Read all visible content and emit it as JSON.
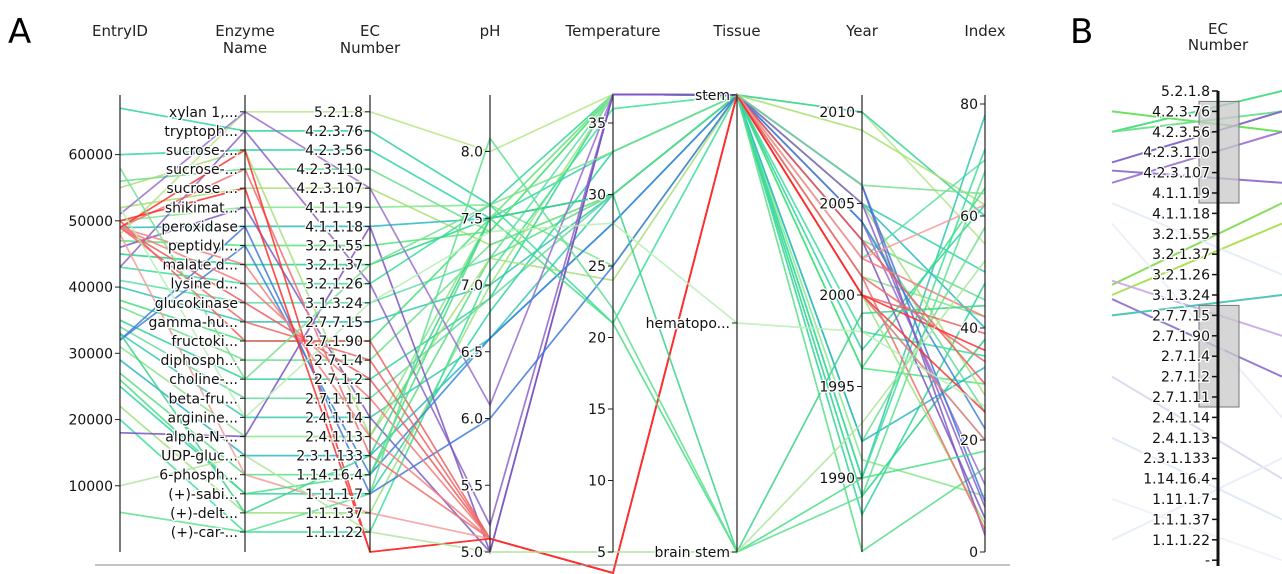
{
  "panel_labels": {
    "a": "A",
    "b": "B"
  },
  "chart_data": [
    {
      "type": "parallel-coordinates",
      "axes": [
        {
          "key": "entry_id",
          "title": [
            "EntryID"
          ],
          "scale": "linear",
          "domain": [
            0,
            69000
          ],
          "ticks": [
            {
              "v": 10000,
              "label": "10000"
            },
            {
              "v": 20000,
              "label": "20000"
            },
            {
              "v": 30000,
              "label": "30000"
            },
            {
              "v": 40000,
              "label": "40000"
            },
            {
              "v": 50000,
              "label": "50000"
            },
            {
              "v": 60000,
              "label": "60000"
            }
          ]
        },
        {
          "key": "enzyme_name",
          "title": [
            "Enzyme",
            "Name"
          ],
          "scale": "category",
          "ticks": [
            {
              "v": 0,
              "label": "(+)-car-..."
            },
            {
              "v": 1,
              "label": "(+)-delt..."
            },
            {
              "v": 2,
              "label": "(+)-sabi..."
            },
            {
              "v": 3,
              "label": "6-phosph..."
            },
            {
              "v": 4,
              "label": "UDP-gluc..."
            },
            {
              "v": 5,
              "label": "alpha-N-..."
            },
            {
              "v": 6,
              "label": "arginine..."
            },
            {
              "v": 7,
              "label": "beta-fru..."
            },
            {
              "v": 8,
              "label": "choline-..."
            },
            {
              "v": 9,
              "label": "diphosph..."
            },
            {
              "v": 10,
              "label": "fructoki..."
            },
            {
              "v": 11,
              "label": "gamma-hu..."
            },
            {
              "v": 12,
              "label": "glucokinase"
            },
            {
              "v": 13,
              "label": "lysine d..."
            },
            {
              "v": 14,
              "label": "malate d..."
            },
            {
              "v": 15,
              "label": "peptidyl..."
            },
            {
              "v": 16,
              "label": "peroxidase"
            },
            {
              "v": 17,
              "label": "shikimat..."
            },
            {
              "v": 18,
              "label": "sucrose ..."
            },
            {
              "v": 19,
              "label": "sucrose-..."
            },
            {
              "v": 20,
              "label": "sucrose-..."
            },
            {
              "v": 21,
              "label": "tryptoph..."
            },
            {
              "v": 22,
              "label": "xylan 1,..."
            }
          ]
        },
        {
          "key": "ec_number",
          "title": [
            "EC",
            "Number"
          ],
          "scale": "category",
          "ticks": [
            {
              "v": 0,
              "label": "1.1.1.22"
            },
            {
              "v": 1,
              "label": "1.1.1.37"
            },
            {
              "v": 2,
              "label": "1.11.1.7"
            },
            {
              "v": 3,
              "label": "1.14.16.4"
            },
            {
              "v": 4,
              "label": "2.3.1.133"
            },
            {
              "v": 5,
              "label": "2.4.1.13"
            },
            {
              "v": 6,
              "label": "2.4.1.14"
            },
            {
              "v": 7,
              "label": "2.7.1.11"
            },
            {
              "v": 8,
              "label": "2.7.1.2"
            },
            {
              "v": 9,
              "label": "2.7.1.4"
            },
            {
              "v": 10,
              "label": "2.7.1.90"
            },
            {
              "v": 11,
              "label": "2.7.7.15"
            },
            {
              "v": 12,
              "label": "3.1.3.24"
            },
            {
              "v": 13,
              "label": "3.2.1.26"
            },
            {
              "v": 14,
              "label": "3.2.1.37"
            },
            {
              "v": 15,
              "label": "3.2.1.55"
            },
            {
              "v": 16,
              "label": "4.1.1.18"
            },
            {
              "v": 17,
              "label": "4.1.1.19"
            },
            {
              "v": 18,
              "label": "4.2.3.107"
            },
            {
              "v": 19,
              "label": "4.2.3.110"
            },
            {
              "v": 20,
              "label": "4.2.3.56"
            },
            {
              "v": 21,
              "label": "4.2.3.76"
            },
            {
              "v": 22,
              "label": "5.2.1.8"
            }
          ]
        },
        {
          "key": "ph",
          "title": [
            "pH"
          ],
          "scale": "linear",
          "domain": [
            5.0,
            8.5
          ],
          "ticks": [
            {
              "v": 5.0,
              "label": "5.0"
            },
            {
              "v": 5.5,
              "label": "5.5"
            },
            {
              "v": 6.0,
              "label": "6.0"
            },
            {
              "v": 6.5,
              "label": "6.5"
            },
            {
              "v": 7.0,
              "label": "7.0"
            },
            {
              "v": 7.5,
              "label": "7.5"
            },
            {
              "v": 8.0,
              "label": "8.0"
            }
          ]
        },
        {
          "key": "temperature",
          "title": [
            "Temperature"
          ],
          "scale": "linear",
          "domain": [
            5,
            37
          ],
          "ticks": [
            {
              "v": 5,
              "label": "5"
            },
            {
              "v": 10,
              "label": "10"
            },
            {
              "v": 15,
              "label": "15"
            },
            {
              "v": 20,
              "label": "20"
            },
            {
              "v": 25,
              "label": "25"
            },
            {
              "v": 30,
              "label": "30"
            },
            {
              "v": 35,
              "label": "35"
            }
          ]
        },
        {
          "key": "tissue",
          "title": [
            "Tissue"
          ],
          "scale": "category",
          "ticks": [
            {
              "v": 0,
              "label": "brain stem"
            },
            {
              "v": 1,
              "label": "hematopo..."
            },
            {
              "v": 2,
              "label": "stem"
            }
          ]
        },
        {
          "key": "year",
          "title": [
            "Year"
          ],
          "scale": "linear",
          "domain": [
            1986,
            2011
          ],
          "ticks": [
            {
              "v": 1990,
              "label": "1990"
            },
            {
              "v": 1995,
              "label": "1995"
            },
            {
              "v": 2000,
              "label": "2000"
            },
            {
              "v": 2005,
              "label": "2005"
            },
            {
              "v": 2010,
              "label": "2010"
            }
          ]
        },
        {
          "key": "index",
          "title": [
            "Index"
          ],
          "scale": "linear",
          "domain": [
            0,
            82
          ],
          "ticks": [
            {
              "v": 0,
              "label": "0"
            },
            {
              "v": 20,
              "label": "20"
            },
            {
              "v": 40,
              "label": "40"
            },
            {
              "v": 60,
              "label": "60"
            },
            {
              "v": 80,
              "label": "80"
            }
          ]
        }
      ],
      "records": [
        [
          48000,
          22,
          22,
          8.0,
          37,
          2,
          2010,
          55,
          "#b7e68a"
        ],
        [
          67000,
          21,
          21,
          7.6,
          37,
          2,
          2010,
          60,
          "#34d39a"
        ],
        [
          60000,
          20,
          20,
          7.5,
          33,
          2,
          2005,
          50,
          "#2fd5a8"
        ],
        [
          56000,
          19,
          19,
          7.4,
          37,
          2,
          2003,
          45,
          "#66df88"
        ],
        [
          52000,
          18,
          18,
          7.3,
          30,
          2,
          2009,
          62,
          "#a8e070"
        ],
        [
          50000,
          17,
          17,
          7.6,
          25,
          2,
          2001,
          42,
          "#7fe68a"
        ],
        [
          49000,
          16,
          16,
          7.5,
          30,
          2,
          2005,
          40,
          "#2cb8c4"
        ],
        [
          47000,
          15,
          15,
          7.4,
          37,
          2,
          1996,
          30,
          "#53e67a"
        ],
        [
          45000,
          14,
          14,
          7.5,
          30,
          2,
          1989,
          38,
          "#28d48a"
        ],
        [
          43000,
          13,
          13,
          7.6,
          21,
          2,
          1998,
          35,
          "#3ddd9c"
        ],
        [
          41000,
          12,
          12,
          7.2,
          37,
          2,
          2002,
          70,
          "#5be1a5"
        ],
        [
          40000,
          11,
          11,
          7.0,
          30,
          2,
          1990,
          78,
          "#33c5b3"
        ],
        [
          38000,
          10,
          10,
          7.5,
          37,
          2,
          1996,
          65,
          "#45e07e"
        ],
        [
          37000,
          9,
          9,
          7.3,
          30,
          2,
          1992,
          58,
          "#6ee08d"
        ],
        [
          35000,
          8,
          8,
          6.9,
          37,
          2,
          1988,
          48,
          "#2fd398"
        ],
        [
          34000,
          7,
          7,
          6.9,
          30,
          2,
          2004,
          25,
          "#68d8a0"
        ],
        [
          33000,
          6,
          6,
          6.6,
          30,
          2,
          2000,
          20,
          "#37c9b0"
        ],
        [
          31000,
          5,
          5,
          7.5,
          37,
          2,
          1991,
          10,
          "#8be68c"
        ],
        [
          29000,
          4,
          4,
          6.6,
          28,
          2,
          1992,
          33,
          "#29b6c8"
        ],
        [
          27000,
          3,
          3,
          7.2,
          30,
          2,
          1986,
          15,
          "#59de85"
        ],
        [
          25000,
          2,
          2,
          6.8,
          33,
          2,
          1997,
          62,
          "#2fd4a4"
        ],
        [
          22000,
          1,
          1,
          7.0,
          37,
          2,
          2000,
          5,
          "#9fe37c"
        ],
        [
          20000,
          0,
          0,
          7.1,
          36,
          2,
          1990,
          72,
          "#3ee09a"
        ],
        [
          55000,
          20,
          5,
          7.2,
          24,
          2,
          2005,
          28,
          "#a9de7c"
        ],
        [
          51000,
          22,
          18,
          6.1,
          37,
          2,
          2004,
          12,
          "#9a6fcf"
        ],
        [
          43000,
          21,
          13,
          5.2,
          37,
          2,
          2005,
          8,
          "#8d62c7"
        ],
        [
          46000,
          17,
          6,
          5.0,
          37,
          2,
          2006,
          3,
          "#7e5cc2"
        ],
        [
          18000,
          5,
          16,
          5.0,
          37,
          2,
          2003,
          6,
          "#7a55c2"
        ],
        [
          32000,
          16,
          2,
          6.0,
          25,
          2,
          2006,
          9,
          "#3f79db"
        ],
        [
          32000,
          15,
          3,
          6.6,
          28,
          2,
          2004,
          22,
          "#3f84d8"
        ],
        [
          49000,
          12,
          8,
          5.1,
          4,
          2,
          2003,
          30,
          "#ef5a5a"
        ],
        [
          49000,
          11,
          9,
          5.1,
          4,
          2,
          2001,
          34,
          "#f26464"
        ],
        [
          50000,
          10,
          10,
          5.1,
          4,
          2,
          2000,
          39,
          "#ee6060"
        ],
        [
          49000,
          13,
          7,
          5.1,
          4,
          2,
          2002,
          42,
          "#f57a7a"
        ],
        [
          49000,
          14,
          5,
          5.1,
          4,
          2,
          2000,
          20,
          "#f48080"
        ],
        [
          49000,
          19,
          4,
          5.1,
          4,
          2,
          2001,
          4,
          "#ef6e6e"
        ],
        [
          48000,
          3,
          1,
          5.1,
          4,
          2,
          2002,
          62,
          "#f59b9b"
        ],
        [
          49000,
          20,
          -1,
          5.1,
          4,
          2,
          2000,
          25,
          "#ff3030"
        ],
        [
          50000,
          18,
          -1,
          5.1,
          4,
          2,
          2000,
          36,
          "#ff2b2b"
        ],
        [
          26000,
          2,
          3,
          7.5,
          21,
          0,
          1990,
          18,
          "#48df85"
        ],
        [
          33000,
          1,
          4,
          7.5,
          30,
          0,
          1999,
          44,
          "#3ed28c"
        ],
        [
          6000,
          0,
          2,
          8.1,
          22,
          0,
          1989,
          68,
          "#5fe091"
        ],
        [
          10000,
          4,
          0,
          5.0,
          5,
          0,
          1993,
          52,
          "#aee69e"
        ],
        [
          52000,
          6,
          12,
          7.4,
          28,
          1,
          1998,
          26,
          "#b8eeb5"
        ],
        [
          58000,
          8,
          14,
          7.6,
          33,
          2,
          2006,
          64,
          "#7adf8f"
        ]
      ]
    },
    {
      "type": "parallel-coordinates-axis",
      "axis_title": [
        "EC",
        "Number"
      ],
      "tick_labels": [
        "5.2.1.8",
        "4.2.3.76",
        "4.2.3.56",
        "4.2.3.110",
        "4.2.3.107",
        "4.1.1.19",
        "4.1.1.18",
        "3.2.1.55",
        "3.2.1.37",
        "3.2.1.26",
        "3.1.3.24",
        "2.7.7.15",
        "2.7.1.90",
        "2.7.1.4",
        "2.7.1.2",
        "2.7.1.11",
        "2.4.1.14",
        "2.4.1.13",
        "2.3.1.133",
        "1.14.16.4",
        "1.11.1.7",
        "1.1.1.37",
        "1.1.1.22",
        "-"
      ],
      "brushes": [
        [
          "4.2.3.76",
          "4.1.1.19"
        ],
        [
          "2.7.7.15",
          "2.7.1.11"
        ]
      ],
      "lines": [
        {
          "from": 2,
          "to": 0,
          "color": "#3ed87a"
        },
        {
          "from": 1,
          "to": 2,
          "color": "#5be04f"
        },
        {
          "from": 2,
          "to": 1,
          "color": "#66df88"
        },
        {
          "from": 3.5,
          "to": 1,
          "color": "#7d5cc8"
        },
        {
          "from": 4.5,
          "to": 2,
          "color": "#9a6fcf"
        },
        {
          "from": 3.9,
          "to": 4.5,
          "color": "#8a66c7"
        },
        {
          "from": 10,
          "to": 6.5,
          "color": "#a6dd47"
        },
        {
          "from": 9.5,
          "to": 5.5,
          "color": "#7ed94a"
        },
        {
          "from": 10.2,
          "to": 14,
          "color": "#8a6fcc"
        },
        {
          "from": 9.3,
          "to": 12,
          "color": "#caa9e6"
        },
        {
          "from": 11,
          "to": 10,
          "color": "#3fc0b0"
        },
        {
          "from": 14,
          "to": 19,
          "color": "#d8d8ef"
        },
        {
          "from": 17,
          "to": 21,
          "color": "#dfe7f6"
        },
        {
          "from": 22,
          "to": 18,
          "color": "#e7edf7"
        },
        {
          "from": 20,
          "to": 23,
          "color": "#eef2f9"
        },
        {
          "from": 5.5,
          "to": 9,
          "color": "#e4ecf7"
        },
        {
          "from": 6.5,
          "to": 16,
          "color": "#e9eef8"
        }
      ]
    }
  ]
}
